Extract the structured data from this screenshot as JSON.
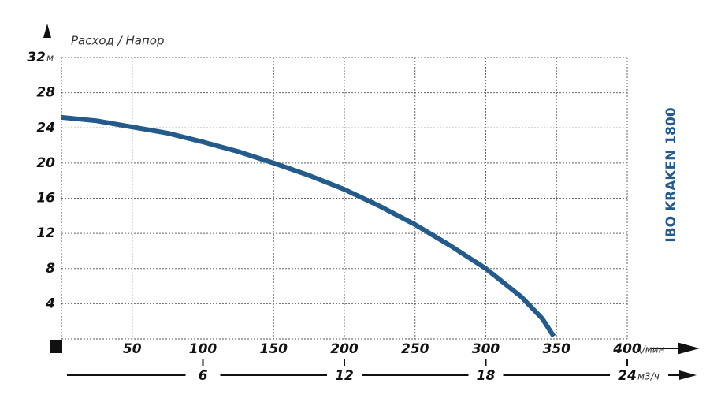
{
  "chart_data": {
    "type": "line",
    "title": "Расход / Напор",
    "side_title": "IBO KRAKEN 1800",
    "y_unit": "м",
    "x_unit": "л/мин",
    "x2_unit": "м3/ч",
    "x": [
      0,
      25,
      50,
      75,
      100,
      125,
      150,
      175,
      200,
      225,
      250,
      275,
      300,
      325,
      340,
      348
    ],
    "series": [
      {
        "color": "#245b8a",
        "values": [
          25.2,
          24.8,
          24.1,
          23.4,
          22.4,
          21.3,
          20,
          18.6,
          17,
          15.1,
          13,
          10.6,
          8,
          4.8,
          2.3,
          0.3
        ]
      }
    ],
    "xlim": [
      0,
      400
    ],
    "xticks": [
      50,
      100,
      150,
      200,
      250,
      300,
      350,
      400
    ],
    "x2lim": [
      0,
      24
    ],
    "x2ticks": [
      6,
      12,
      18,
      24
    ],
    "ylim": [
      0,
      32
    ],
    "yticks": [
      4,
      8,
      12,
      16,
      20,
      24,
      28,
      32
    ],
    "grid": true
  }
}
